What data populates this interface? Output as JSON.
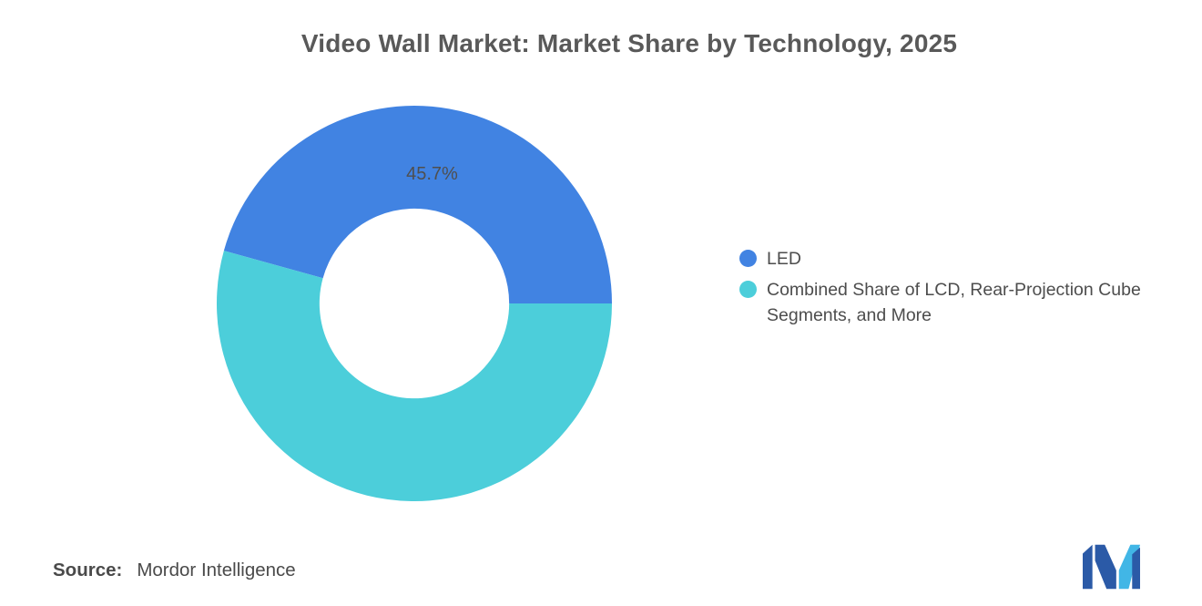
{
  "title": "Video Wall Market: Market Share by Technology, 2025",
  "chart_data": {
    "type": "pie",
    "subtype": "donut",
    "title": "Video Wall Market: Market Share by Technology, 2025",
    "slices": [
      {
        "name": "LED",
        "value": 45.7,
        "label": "45.7%",
        "color": "#4183E2"
      },
      {
        "name": "Combined Share of LCD, Rear-Projection Cube Segments, and More",
        "value": 54.3,
        "label": "",
        "color": "#4CCEDA"
      }
    ],
    "start_angle_deg": 0,
    "direction": "counterclockwise",
    "inner_radius_ratio": 0.48,
    "legend_position": "right",
    "label_color": "#4f4f4f"
  },
  "source": {
    "label": "Source:",
    "value": "Mordor Intelligence"
  },
  "logo": {
    "dark_color": "#2B5AA7",
    "light_color": "#41B6E6"
  }
}
